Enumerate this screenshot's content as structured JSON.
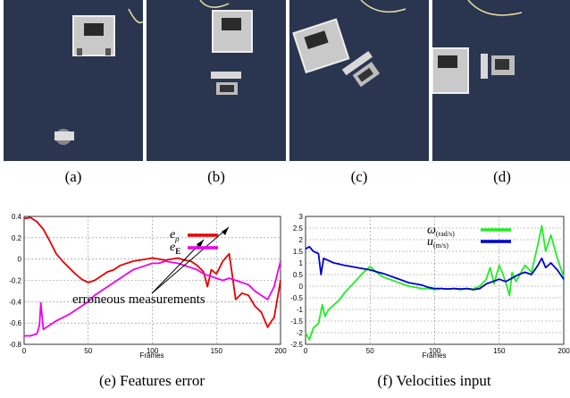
{
  "photos": [
    {
      "label": "(a)"
    },
    {
      "label": "(b)"
    },
    {
      "label": "(c)"
    },
    {
      "label": "(d)"
    }
  ],
  "chart_data": [
    {
      "type": "line",
      "caption": "(e) Features error",
      "xlabel": "Frames",
      "ylabel": "",
      "xlim": [
        0,
        200
      ],
      "ylim": [
        -0.8,
        0.4
      ],
      "xticks": [
        0,
        50,
        100,
        150,
        200
      ],
      "yticks": [
        0.4,
        0.2,
        0,
        -0.2,
        -0.4,
        -0.6,
        -0.8
      ],
      "grid": true,
      "legend_position": "top-right",
      "annotation": "erroneous measurements",
      "series": [
        {
          "name": "e_ρ",
          "color": "#e60000",
          "x": [
            0,
            5,
            10,
            15,
            20,
            25,
            30,
            35,
            40,
            45,
            50,
            55,
            60,
            65,
            70,
            75,
            80,
            85,
            90,
            95,
            100,
            105,
            110,
            115,
            120,
            125,
            130,
            135,
            140,
            143,
            146,
            150,
            155,
            160,
            165,
            170,
            175,
            180,
            185,
            190,
            193,
            195,
            200
          ],
          "y": [
            0.38,
            0.39,
            0.35,
            0.28,
            0.17,
            0.05,
            -0.02,
            -0.08,
            -0.14,
            -0.19,
            -0.22,
            -0.2,
            -0.16,
            -0.12,
            -0.1,
            -0.06,
            -0.04,
            -0.02,
            -0.01,
            0.0,
            0.01,
            0.0,
            -0.01,
            0.0,
            0.01,
            -0.01,
            -0.02,
            -0.06,
            -0.12,
            -0.26,
            -0.1,
            -0.14,
            -0.02,
            0.05,
            -0.38,
            -0.32,
            -0.34,
            -0.44,
            -0.5,
            -0.64,
            -0.58,
            -0.55,
            -0.2
          ]
        },
        {
          "name": "e_E",
          "color": "#ee00ee",
          "x": [
            0,
            5,
            10,
            12,
            13,
            15,
            20,
            25,
            30,
            35,
            40,
            45,
            50,
            55,
            60,
            65,
            70,
            75,
            80,
            85,
            90,
            95,
            100,
            105,
            110,
            115,
            120,
            125,
            130,
            135,
            140,
            145,
            150,
            155,
            160,
            165,
            170,
            175,
            180,
            185,
            190,
            195,
            200
          ],
          "y": [
            -0.72,
            -0.72,
            -0.7,
            -0.62,
            -0.41,
            -0.66,
            -0.62,
            -0.58,
            -0.55,
            -0.52,
            -0.48,
            -0.44,
            -0.4,
            -0.34,
            -0.3,
            -0.26,
            -0.22,
            -0.18,
            -0.14,
            -0.1,
            -0.08,
            -0.06,
            -0.04,
            -0.04,
            -0.02,
            -0.03,
            -0.04,
            -0.06,
            -0.08,
            -0.1,
            -0.14,
            -0.16,
            -0.18,
            -0.2,
            -0.18,
            -0.2,
            -0.22,
            -0.24,
            -0.3,
            -0.34,
            -0.38,
            -0.26,
            -0.02
          ]
        }
      ]
    },
    {
      "type": "line",
      "caption": "(f) Velocities input",
      "xlabel": "Frames",
      "ylabel": "",
      "xlim": [
        0,
        200
      ],
      "ylim": [
        -2.5,
        3
      ],
      "xticks": [
        0,
        50,
        100,
        150,
        200
      ],
      "yticks": [
        3,
        2.5,
        2,
        1.5,
        1,
        0.5,
        0,
        -0.5,
        -1,
        -1.5,
        -2,
        -2.5
      ],
      "grid": true,
      "legend_position": "top-right",
      "series": [
        {
          "name": "ω(rad/s)",
          "color": "#22ee22",
          "x": [
            0,
            3,
            6,
            10,
            13,
            15,
            18,
            22,
            26,
            30,
            35,
            40,
            45,
            50,
            55,
            60,
            65,
            70,
            75,
            80,
            85,
            90,
            95,
            100,
            105,
            110,
            115,
            120,
            125,
            130,
            135,
            140,
            143,
            146,
            150,
            153,
            156,
            158,
            160,
            163,
            166,
            170,
            175,
            180,
            183,
            186,
            190,
            195,
            200
          ],
          "y": [
            -2.0,
            -2.3,
            -1.8,
            -1.6,
            -0.8,
            -1.3,
            -1.0,
            -0.8,
            -0.6,
            -0.3,
            0.0,
            0.3,
            0.6,
            0.85,
            0.6,
            0.4,
            0.3,
            0.2,
            0.1,
            0.0,
            -0.05,
            -0.1,
            -0.1,
            -0.15,
            -0.1,
            -0.12,
            -0.1,
            -0.15,
            -0.1,
            -0.12,
            0.0,
            0.3,
            0.8,
            0.1,
            0.9,
            0.5,
            0.0,
            -0.4,
            0.6,
            0.2,
            0.5,
            0.9,
            0.6,
            1.8,
            2.6,
            1.5,
            2.2,
            1.2,
            0.4
          ]
        },
        {
          "name": "u(m/s)",
          "color": "#0000cc",
          "x": [
            0,
            3,
            6,
            10,
            12,
            14,
            18,
            22,
            26,
            30,
            35,
            40,
            45,
            50,
            55,
            60,
            65,
            70,
            75,
            80,
            85,
            90,
            95,
            100,
            105,
            110,
            115,
            120,
            125,
            130,
            135,
            140,
            145,
            150,
            155,
            160,
            165,
            170,
            175,
            180,
            183,
            186,
            190,
            195,
            200
          ],
          "y": [
            1.6,
            1.7,
            1.5,
            1.4,
            0.5,
            1.2,
            1.1,
            1.0,
            0.95,
            0.9,
            0.85,
            0.8,
            0.75,
            0.7,
            0.62,
            0.55,
            0.45,
            0.35,
            0.25,
            0.15,
            0.1,
            0.05,
            -0.05,
            -0.1,
            -0.1,
            -0.12,
            -0.1,
            -0.12,
            -0.1,
            -0.15,
            -0.1,
            0.1,
            0.2,
            0.3,
            0.2,
            0.35,
            0.5,
            0.6,
            0.5,
            0.9,
            1.2,
            0.8,
            1.0,
            0.7,
            0.3
          ]
        }
      ]
    }
  ]
}
